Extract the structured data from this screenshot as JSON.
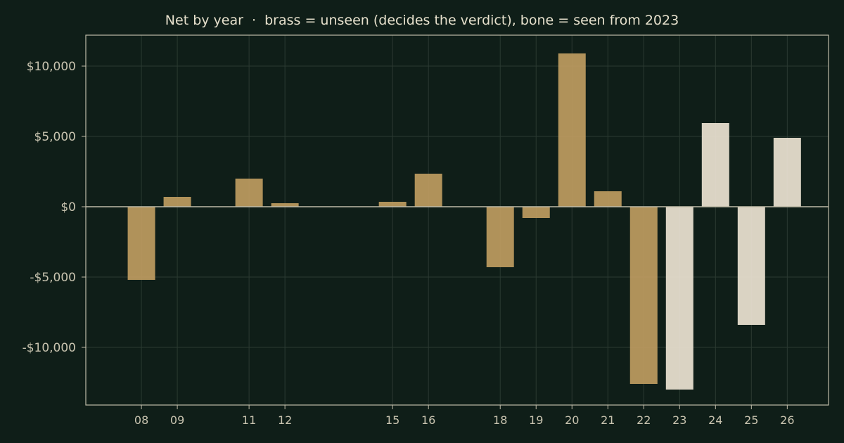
{
  "chart_data": {
    "type": "bar",
    "title": "Net by year  ·  brass = unseen (decides the verdict), bone = seen from 2023",
    "xlabel": "",
    "ylabel": "",
    "ylim": [
      -14100,
      12200
    ],
    "yticks": [
      10000,
      5000,
      0,
      -5000,
      -10000
    ],
    "ytick_labels": [
      "$10,000",
      "$5,000",
      "$0",
      "-$5,000",
      "-$10,000"
    ],
    "grid": true,
    "categories": [
      "08",
      "09",
      "11",
      "12",
      "15",
      "16",
      "18",
      "19",
      "20",
      "21",
      "22",
      "23",
      "24",
      "25",
      "26"
    ],
    "years": [
      2008,
      2009,
      2011,
      2012,
      2015,
      2016,
      2018,
      2019,
      2020,
      2021,
      2022,
      2023,
      2024,
      2025,
      2026
    ],
    "values": [
      -5200,
      700,
      2000,
      250,
      350,
      2350,
      -4300,
      -800,
      10900,
      1100,
      -12600,
      -13000,
      5950,
      -8400,
      4900
    ],
    "bar_groups": [
      "unseen",
      "unseen",
      "unseen",
      "unseen",
      "unseen",
      "unseen",
      "unseen",
      "unseen",
      "unseen",
      "unseen",
      "unseen",
      "seen",
      "seen",
      "seen",
      "seen"
    ],
    "colors": {
      "unseen": "#c29e62",
      "seen": "#ebe3d2",
      "background": "#0f1e18",
      "axes": "#bfbba8",
      "grid": "#2b3a32",
      "tick_text": "#c9c4b0",
      "title_text": "#e6e0cc"
    }
  }
}
